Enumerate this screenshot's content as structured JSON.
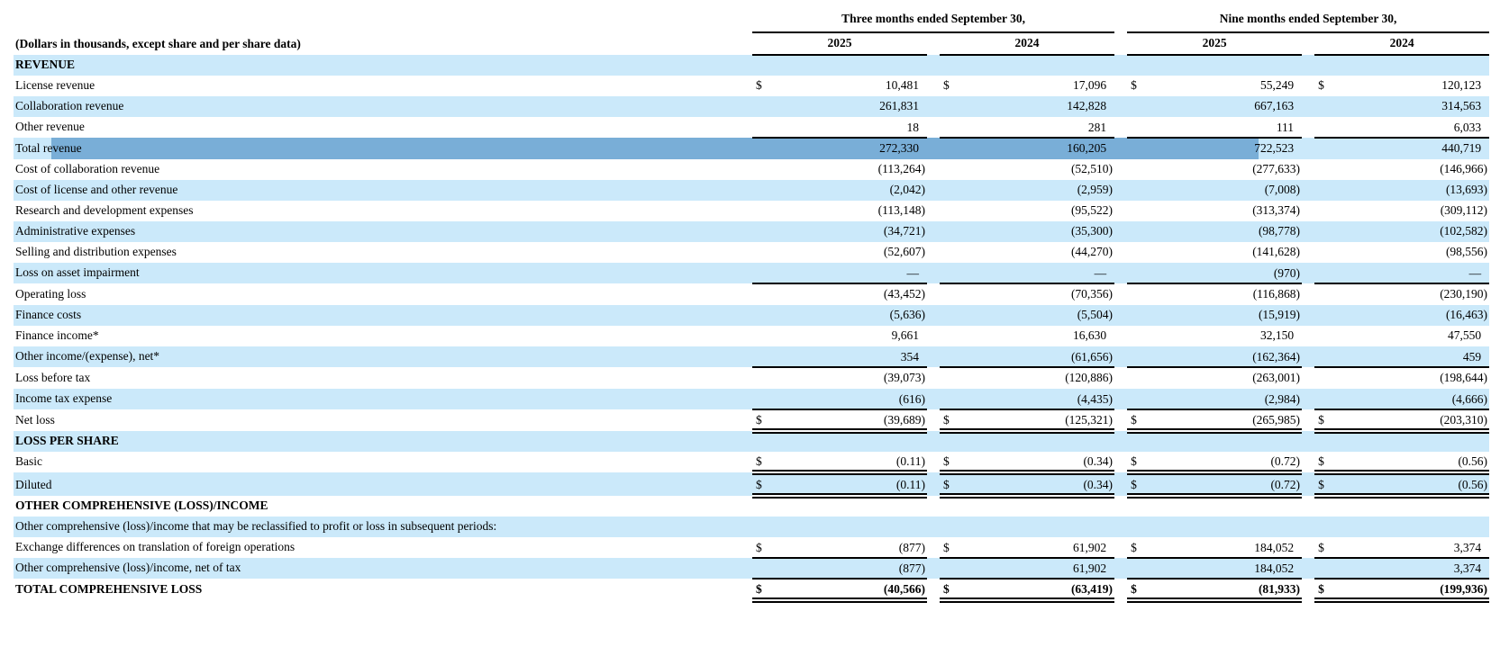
{
  "meta": {
    "note_label": "(Dollars in thousands, except share and per share data)"
  },
  "header": {
    "groups": [
      {
        "label": "Three months ended September 30,",
        "years": [
          "2025",
          "2024"
        ]
      },
      {
        "label": "Nine months ended September 30,",
        "years": [
          "2025",
          "2024"
        ]
      }
    ]
  },
  "colors": {
    "row_highlight": "#cbe9fa",
    "selection_highlight": "#79aed7",
    "rule": "#000000",
    "text": "#000000"
  },
  "rows": [
    {
      "label": "REVENUE",
      "section": true,
      "bold": true,
      "indent": 0,
      "values": null
    },
    {
      "label": "License revenue",
      "indent": 1,
      "dollar": true,
      "values": [
        "10,481",
        "17,096",
        "55,249",
        "120,123"
      ]
    },
    {
      "label": "Collaboration revenue",
      "indent": 1,
      "values": [
        "261,831",
        "142,828",
        "667,163",
        "314,563"
      ]
    },
    {
      "label": "Other revenue",
      "indent": 1,
      "rule": "single",
      "values": [
        "18",
        "281",
        "111",
        "6,033"
      ]
    },
    {
      "label": "Total revenue",
      "indent": 3,
      "selected": true,
      "values": [
        "272,330",
        "160,205",
        "722,523",
        "440,719"
      ]
    },
    {
      "label": "Cost of collaboration revenue",
      "indent": 0,
      "values": [
        "(113,264)",
        "(52,510)",
        "(277,633)",
        "(146,966)"
      ]
    },
    {
      "label": "Cost of license and other revenue",
      "indent": 0,
      "values": [
        "(2,042)",
        "(2,959)",
        "(7,008)",
        "(13,693)"
      ]
    },
    {
      "label": "Research and development expenses",
      "indent": 0,
      "values": [
        "(113,148)",
        "(95,522)",
        "(313,374)",
        "(309,112)"
      ]
    },
    {
      "label": "Administrative expenses",
      "indent": 0,
      "values": [
        "(34,721)",
        "(35,300)",
        "(98,778)",
        "(102,582)"
      ]
    },
    {
      "label": "Selling and distribution expenses",
      "indent": 0,
      "values": [
        "(52,607)",
        "(44,270)",
        "(141,628)",
        "(98,556)"
      ]
    },
    {
      "label": "Loss on asset impairment",
      "indent": 0,
      "rule": "single",
      "values": [
        "—",
        "—",
        "(970)",
        "—"
      ]
    },
    {
      "label": "Operating loss",
      "indent": 2,
      "values": [
        "(43,452)",
        "(70,356)",
        "(116,868)",
        "(230,190)"
      ]
    },
    {
      "label": "Finance costs",
      "indent": 0,
      "values": [
        "(5,636)",
        "(5,504)",
        "(15,919)",
        "(16,463)"
      ]
    },
    {
      "label": "Finance income*",
      "indent": 0,
      "values": [
        "9,661",
        "16,630",
        "32,150",
        "47,550"
      ]
    },
    {
      "label": "Other income/(expense), net*",
      "indent": 0,
      "rule": "single",
      "values": [
        "354",
        "(61,656)",
        "(162,364)",
        "459"
      ]
    },
    {
      "label": "Loss before tax",
      "indent": 2,
      "values": [
        "(39,073)",
        "(120,886)",
        "(263,001)",
        "(198,644)"
      ]
    },
    {
      "label": "Income tax expense",
      "indent": 0,
      "rule": "single",
      "values": [
        "(616)",
        "(4,435)",
        "(2,984)",
        "(4,666)"
      ]
    },
    {
      "label": "Net loss",
      "indent": 2,
      "dollar": true,
      "rule": "double",
      "values": [
        "(39,689)",
        "(125,321)",
        "(265,985)",
        "(203,310)"
      ]
    },
    {
      "label": "LOSS PER SHARE",
      "section": true,
      "bold": true,
      "indent": 0,
      "values": null
    },
    {
      "label": "Basic",
      "indent": 2,
      "dollar": true,
      "rule": "double",
      "values": [
        "(0.11)",
        "(0.34)",
        "(0.72)",
        "(0.56)"
      ]
    },
    {
      "label": "Diluted",
      "indent": 2,
      "dollar": true,
      "rule": "double",
      "values": [
        "(0.11)",
        "(0.34)",
        "(0.72)",
        "(0.56)"
      ]
    },
    {
      "label": "OTHER COMPREHENSIVE (LOSS)/INCOME",
      "section": true,
      "bold": true,
      "indent": 0,
      "values": null
    },
    {
      "label": "Other comprehensive (loss)/income that may be reclassified to profit or loss in subsequent periods:",
      "indent": 0,
      "values": null
    },
    {
      "label": "Exchange differences on translation of foreign operations",
      "indent": 0,
      "dollar": true,
      "rule": "single",
      "values": [
        "(877)",
        "61,902",
        "184,052",
        "3,374"
      ]
    },
    {
      "label": "Other comprehensive (loss)/income, net of tax",
      "indent": 0,
      "rule": "single",
      "values": [
        "(877)",
        "61,902",
        "184,052",
        "3,374"
      ]
    },
    {
      "label": "TOTAL COMPREHENSIVE LOSS",
      "indent": 2,
      "bold": true,
      "dollar": true,
      "rule": "double",
      "values": [
        "(40,566)",
        "(63,419)",
        "(81,933)",
        "(199,936)"
      ]
    }
  ]
}
